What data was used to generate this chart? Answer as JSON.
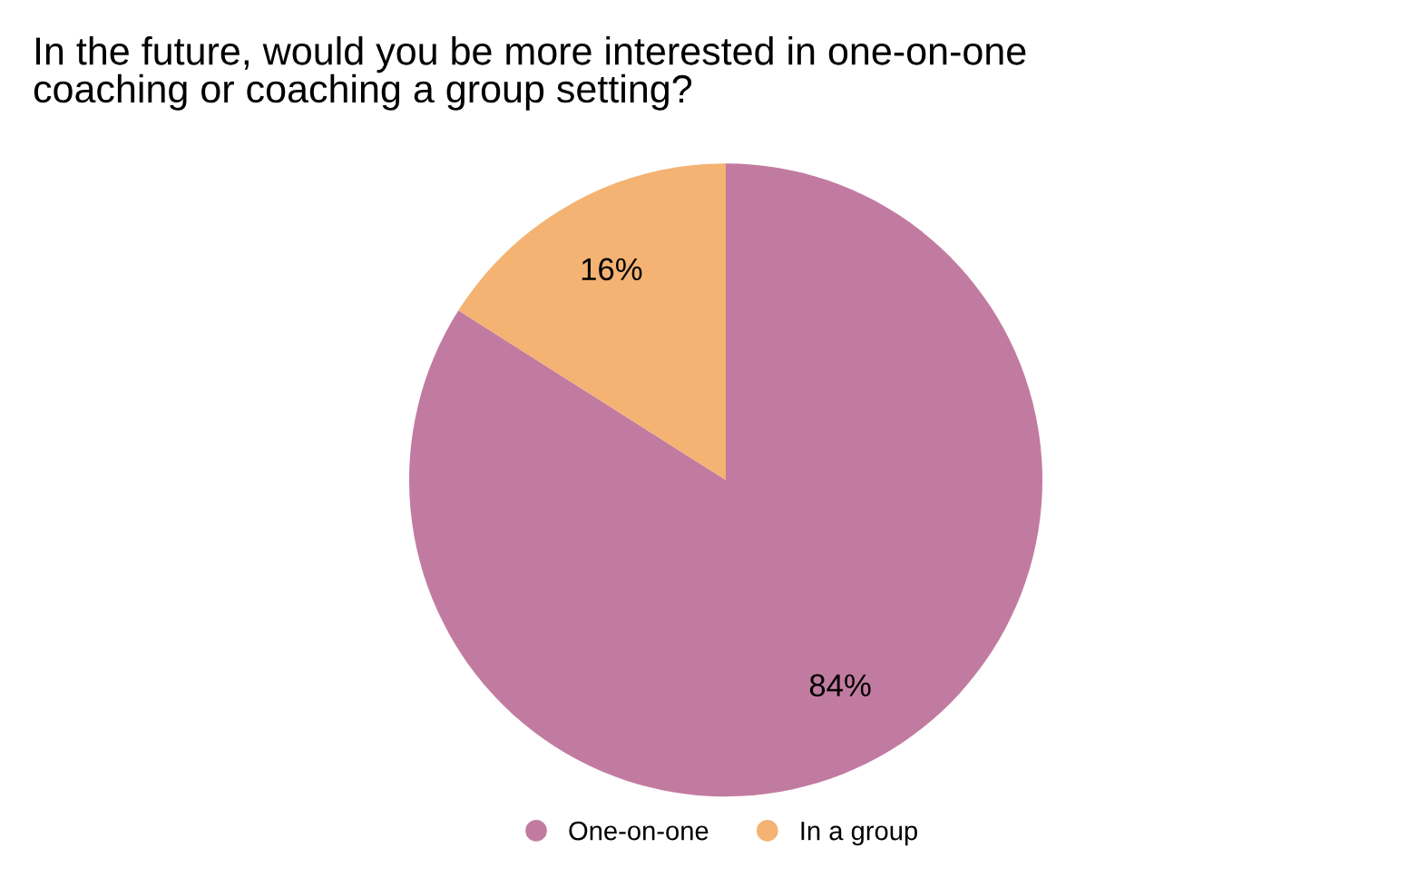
{
  "chart_data": {
    "type": "pie",
    "title": "In the future, would you be more interested in one-on-one\ncoaching or coaching a group setting?",
    "categories": [
      "One-on-one",
      "In a group"
    ],
    "values": [
      84,
      16
    ],
    "colors": [
      "#c27ba0",
      "#f4b273"
    ],
    "value_labels": [
      "84%",
      "16%"
    ],
    "legend": "bottom"
  }
}
